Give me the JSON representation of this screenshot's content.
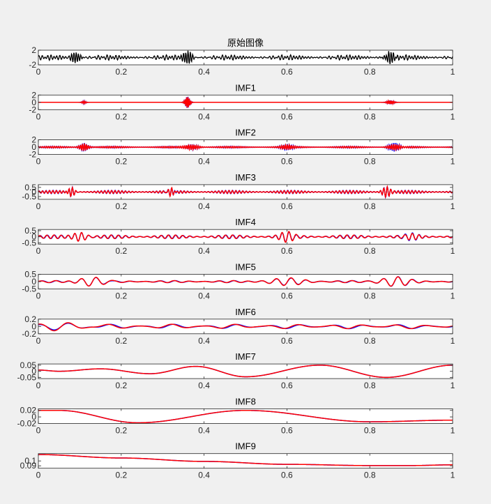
{
  "chart_data": [
    {
      "type": "line",
      "title": "原始图像",
      "xlim": [
        0,
        1
      ],
      "ylim": [
        -2,
        2
      ],
      "xticks": [
        "0",
        "0.2",
        "0.4",
        "0.6",
        "0.8",
        "1"
      ],
      "yticks": [
        "2",
        "-2"
      ],
      "ytick_values": [
        2,
        -2
      ],
      "series": [
        {
          "color": "#000000",
          "amplitude": 1,
          "bursts": [
            {
              "x": 0.09,
              "amp": 1.6,
              "width": 0.012,
              "freq": 180
            },
            {
              "x": 0.36,
              "amp": 2.0,
              "width": 0.012,
              "freq": 180
            },
            {
              "x": 0.85,
              "amp": 1.6,
              "width": 0.014,
              "freq": 180
            }
          ],
          "base": [
            {
              "amp": 0.5,
              "freq": 140
            },
            {
              "amp": 0.3,
              "freq": 97
            }
          ]
        }
      ]
    },
    {
      "type": "line",
      "title": "IMF1",
      "xlim": [
        0,
        1
      ],
      "ylim": [
        -2,
        2
      ],
      "xticks": [
        "0",
        "0.2",
        "0.4",
        "0.6",
        "0.8",
        "1"
      ],
      "yticks": [
        "2",
        "0",
        "-2"
      ],
      "ytick_values": [
        2,
        0,
        -2
      ],
      "series": [
        {
          "color": "#0000ff",
          "bursts": [
            {
              "x": 0.11,
              "amp": 0.4,
              "width": 0.006,
              "freq": 300
            },
            {
              "x": 0.36,
              "amp": 1.8,
              "width": 0.007,
              "freq": 300
            },
            {
              "x": 0.85,
              "amp": 0.6,
              "width": 0.01,
              "freq": 300
            }
          ],
          "base": []
        },
        {
          "color": "#ff0000",
          "bursts": [
            {
              "x": 0.11,
              "amp": 0.35,
              "width": 0.006,
              "freq": 300
            },
            {
              "x": 0.36,
              "amp": 1.7,
              "width": 0.007,
              "freq": 300
            },
            {
              "x": 0.85,
              "amp": 0.55,
              "width": 0.01,
              "freq": 300
            }
          ],
          "base": []
        }
      ]
    },
    {
      "type": "line",
      "title": "IMF2",
      "xlim": [
        0,
        1
      ],
      "ylim": [
        -2,
        2
      ],
      "xticks": [
        "0",
        "0.2",
        "0.4",
        "0.6",
        "0.8",
        "1"
      ],
      "yticks": [
        "2",
        "0",
        "-2"
      ],
      "ytick_values": [
        2,
        0,
        -2
      ],
      "series": [
        {
          "color": "#0000ff",
          "bursts": [
            {
              "x": 0.11,
              "amp": 1.1,
              "width": 0.012,
              "freq": 210
            },
            {
              "x": 0.37,
              "amp": 0.8,
              "width": 0.02,
              "freq": 210
            },
            {
              "x": 0.6,
              "amp": 0.6,
              "width": 0.015,
              "freq": 210
            },
            {
              "x": 0.86,
              "amp": 1.3,
              "width": 0.018,
              "freq": 210
            }
          ],
          "base": [
            {
              "amp": 0.25,
              "freq": 210
            }
          ]
        },
        {
          "color": "#ff0000",
          "bursts": [
            {
              "x": 0.11,
              "amp": 1.0,
              "width": 0.012,
              "freq": 210
            },
            {
              "x": 0.37,
              "amp": 0.7,
              "width": 0.02,
              "freq": 210
            },
            {
              "x": 0.6,
              "amp": 0.5,
              "width": 0.015,
              "freq": 210
            },
            {
              "x": 0.86,
              "amp": 0.9,
              "width": 0.018,
              "freq": 210
            }
          ],
          "base": [
            {
              "amp": 0.22,
              "freq": 210
            }
          ]
        }
      ]
    },
    {
      "type": "line",
      "title": "IMF3",
      "xlim": [
        0,
        1
      ],
      "ylim": [
        -0.8,
        0.8
      ],
      "xticks": [
        "0",
        "0.2",
        "0.4",
        "0.6",
        "0.8",
        "1"
      ],
      "yticks": [
        "0.5",
        "0",
        "-0.5"
      ],
      "ytick_values": [
        0.5,
        0,
        -0.5
      ],
      "series": [
        {
          "color": "#0000ff",
          "bursts": [
            {
              "x": 0.08,
              "amp": 0.6,
              "width": 0.01,
              "freq": 120
            },
            {
              "x": 0.32,
              "amp": 0.6,
              "width": 0.01,
              "freq": 120
            },
            {
              "x": 0.84,
              "amp": 0.6,
              "width": 0.012,
              "freq": 120
            }
          ],
          "base": [
            {
              "amp": 0.18,
              "freq": 120
            }
          ]
        },
        {
          "color": "#ff0000",
          "bursts": [
            {
              "x": 0.08,
              "amp": 0.55,
              "width": 0.01,
              "freq": 120
            },
            {
              "x": 0.32,
              "amp": 0.65,
              "width": 0.01,
              "freq": 120
            },
            {
              "x": 0.84,
              "amp": 0.55,
              "width": 0.012,
              "freq": 120
            }
          ],
          "base": [
            {
              "amp": 0.16,
              "freq": 120
            }
          ]
        }
      ]
    },
    {
      "type": "line",
      "title": "IMF4",
      "xlim": [
        0,
        1
      ],
      "ylim": [
        -0.6,
        0.6
      ],
      "xticks": [
        "0",
        "0.2",
        "0.4",
        "0.6",
        "0.8",
        "1"
      ],
      "yticks": [
        "0.5",
        "0",
        "-0.5"
      ],
      "ytick_values": [
        0.5,
        0,
        -0.5
      ],
      "series": [
        {
          "color": "#0000ff",
          "bursts": [
            {
              "x": 0.1,
              "amp": 0.35,
              "width": 0.02,
              "freq": 60
            },
            {
              "x": 0.6,
              "amp": 0.35,
              "width": 0.02,
              "freq": 60
            },
            {
              "x": 0.9,
              "amp": 0.25,
              "width": 0.02,
              "freq": 60
            }
          ],
          "base": [
            {
              "amp": 0.15,
              "freq": 58
            }
          ]
        },
        {
          "color": "#ff0000",
          "bursts": [
            {
              "x": 0.1,
              "amp": 0.35,
              "width": 0.02,
              "freq": 60
            },
            {
              "x": 0.6,
              "amp": 0.35,
              "width": 0.02,
              "freq": 60
            },
            {
              "x": 0.9,
              "amp": 0.25,
              "width": 0.02,
              "freq": 60
            }
          ],
          "base": [
            {
              "amp": 0.15,
              "freq": 58
            }
          ]
        }
      ]
    },
    {
      "type": "line",
      "title": "IMF5",
      "xlim": [
        0,
        1
      ],
      "ylim": [
        -0.5,
        0.5
      ],
      "xticks": [
        "0",
        "0.2",
        "0.4",
        "0.6",
        "0.8",
        "1"
      ],
      "yticks": [
        "0.5",
        "0",
        "-0.5"
      ],
      "ytick_values": [
        0.5,
        0,
        -0.5
      ],
      "series": [
        {
          "color": "#0000ff",
          "bursts": [
            {
              "x": 0.13,
              "amp": 0.32,
              "width": 0.04,
              "freq": 28
            },
            {
              "x": 0.6,
              "amp": 0.22,
              "width": 0.05,
              "freq": 28
            },
            {
              "x": 0.86,
              "amp": 0.3,
              "width": 0.04,
              "freq": 28
            }
          ],
          "base": [
            {
              "amp": 0.07,
              "freq": 28
            }
          ]
        },
        {
          "color": "#ff0000",
          "bursts": [
            {
              "x": 0.13,
              "amp": 0.32,
              "width": 0.04,
              "freq": 28
            },
            {
              "x": 0.6,
              "amp": 0.22,
              "width": 0.05,
              "freq": 28
            },
            {
              "x": 0.86,
              "amp": 0.3,
              "width": 0.04,
              "freq": 28
            }
          ],
          "base": [
            {
              "amp": 0.07,
              "freq": 28
            }
          ]
        }
      ]
    },
    {
      "type": "line",
      "title": "IMF6",
      "xlim": [
        0,
        1
      ],
      "ylim": [
        -0.2,
        0.2
      ],
      "xticks": [
        "0",
        "0.2",
        "0.4",
        "0.6",
        "0.8",
        "1"
      ],
      "yticks": [
        "0.2",
        "0",
        "-0.2"
      ],
      "ytick_values": [
        0.2,
        0,
        -0.2
      ],
      "series": [
        {
          "color": "#0000ff",
          "bursts": [
            {
              "x": 0.05,
              "amp": 0.12,
              "width": 0.06,
              "freq": 13
            }
          ],
          "base": [
            {
              "amp": 0.06,
              "freq": 13
            }
          ]
        },
        {
          "color": "#ff0000",
          "bursts": [
            {
              "x": 0.05,
              "amp": 0.12,
              "width": 0.06,
              "freq": 13
            }
          ],
          "base": [
            {
              "amp": 0.06,
              "freq": 13
            }
          ]
        }
      ]
    },
    {
      "type": "line",
      "title": "IMF7",
      "xlim": [
        0,
        1
      ],
      "ylim": [
        -0.06,
        0.06
      ],
      "xticks": [
        "0",
        "0.2",
        "0.4",
        "0.6",
        "0.8",
        "1"
      ],
      "yticks": [
        "0.05",
        "0",
        "-0.05"
      ],
      "ytick_values": [
        0.05,
        0,
        -0.05
      ],
      "series": [
        {
          "color": "#0000ff",
          "bursts": [],
          "base": [],
          "points": [
            [
              0,
              0.01
            ],
            [
              0.05,
              0
            ],
            [
              0.15,
              0.02
            ],
            [
              0.27,
              -0.02
            ],
            [
              0.38,
              0.04
            ],
            [
              0.5,
              -0.045
            ],
            [
              0.68,
              0.05
            ],
            [
              0.84,
              -0.05
            ],
            [
              1,
              0.05
            ]
          ]
        },
        {
          "color": "#ff0000",
          "bursts": [],
          "base": [],
          "points": [
            [
              0,
              0.01
            ],
            [
              0.05,
              0
            ],
            [
              0.15,
              0.02
            ],
            [
              0.27,
              -0.02
            ],
            [
              0.38,
              0.04
            ],
            [
              0.5,
              -0.045
            ],
            [
              0.68,
              0.05
            ],
            [
              0.84,
              -0.05
            ],
            [
              1,
              0.05
            ]
          ]
        }
      ]
    },
    {
      "type": "line",
      "title": "IMF8",
      "xlim": [
        0,
        1
      ],
      "ylim": [
        -0.02,
        0.025
      ],
      "xticks": [
        "0",
        "0.2",
        "0.4",
        "0.6",
        "0.8",
        "1"
      ],
      "yticks": [
        "0.02",
        "0",
        "-0.02"
      ],
      "ytick_values": [
        0.02,
        0,
        -0.02
      ],
      "series": [
        {
          "color": "#0000ff",
          "bursts": [],
          "base": [],
          "points": [
            [
              0,
              0.02
            ],
            [
              0.05,
              0.02
            ],
            [
              0.24,
              -0.018
            ],
            [
              0.5,
              0.02
            ],
            [
              0.8,
              -0.015
            ],
            [
              1,
              -0.01
            ]
          ]
        },
        {
          "color": "#ff0000",
          "bursts": [],
          "base": [],
          "points": [
            [
              0,
              0.02
            ],
            [
              0.05,
              0.02
            ],
            [
              0.24,
              -0.018
            ],
            [
              0.5,
              0.02
            ],
            [
              0.8,
              -0.015
            ],
            [
              1,
              -0.01
            ]
          ]
        }
      ]
    },
    {
      "type": "line",
      "title": "IMF9",
      "xlim": [
        0,
        1
      ],
      "ylim": [
        0.085,
        0.115
      ],
      "xticks": [
        "0",
        "0.2",
        "0.4",
        "0.6",
        "0.8",
        "1"
      ],
      "yticks": [
        "0.1",
        "0.09"
      ],
      "ytick_values": [
        0.1,
        0.09
      ],
      "series": [
        {
          "color": "#0000ff",
          "bursts": [],
          "base": [],
          "points": [
            [
              0,
              0.113
            ],
            [
              0.2,
              0.106
            ],
            [
              0.4,
              0.099
            ],
            [
              0.6,
              0.093
            ],
            [
              0.8,
              0.0905
            ],
            [
              0.9,
              0.0905
            ],
            [
              1,
              0.092
            ]
          ]
        },
        {
          "color": "#ff0000",
          "bursts": [],
          "base": [],
          "points": [
            [
              0,
              0.113
            ],
            [
              0.2,
              0.106
            ],
            [
              0.4,
              0.099
            ],
            [
              0.6,
              0.093
            ],
            [
              0.8,
              0.0905
            ],
            [
              0.9,
              0.0905
            ],
            [
              1,
              0.092
            ]
          ]
        }
      ]
    }
  ]
}
